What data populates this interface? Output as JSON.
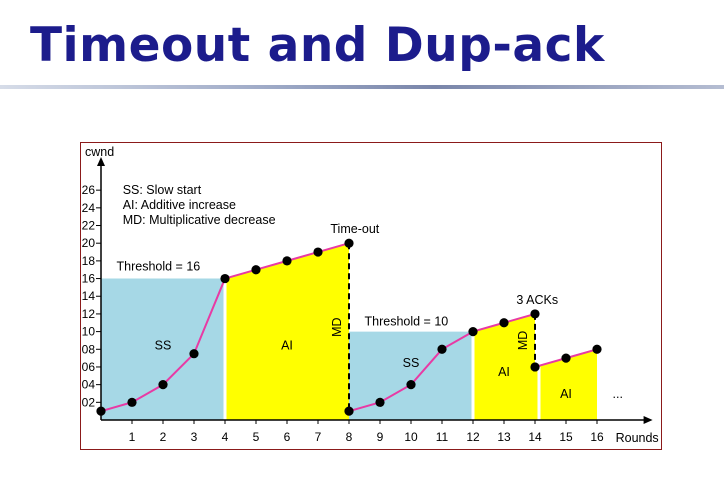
{
  "slide": {
    "title": "Timeout and Dup-ack"
  },
  "colors": {
    "title": "#1c1c8c",
    "ss_fill": "#a6d8e6",
    "ai_fill": "#ffff00",
    "curve": "#e83aa4",
    "frame": "#8b1a1a"
  },
  "chart_data": {
    "type": "line",
    "ylabel": "cwnd",
    "xlabel": "Rounds",
    "x_ticks": [
      "1",
      "2",
      "3",
      "4",
      "5",
      "6",
      "7",
      "8",
      "9",
      "10",
      "11",
      "12",
      "13",
      "14",
      "15",
      "16"
    ],
    "y_ticks": [
      "02",
      "04",
      "06",
      "08",
      "10",
      "12",
      "14",
      "16",
      "18",
      "20",
      "22",
      "24",
      "26"
    ],
    "xlim": [
      0,
      16
    ],
    "ylim": [
      0,
      26
    ],
    "legend": [
      "SS: Slow start",
      "AI: Additive increase",
      "MD: Multiplicative decrease"
    ],
    "series": [
      {
        "x": [
          0,
          1,
          2,
          3,
          4
        ],
        "y": [
          1,
          2,
          4,
          7.5,
          16
        ]
      },
      {
        "x": [
          4,
          5,
          6,
          7,
          8
        ],
        "y": [
          16,
          17,
          18,
          19,
          20
        ]
      },
      {
        "x": [
          8,
          9,
          10,
          11,
          12
        ],
        "y": [
          1,
          2,
          4,
          8,
          10
        ]
      },
      {
        "x": [
          12,
          13,
          14
        ],
        "y": [
          10,
          11,
          12
        ]
      },
      {
        "x": [
          14,
          15,
          16
        ],
        "y": [
          6,
          7,
          8
        ]
      }
    ],
    "regions": [
      {
        "type": "SS",
        "label": "SS"
      },
      {
        "type": "AI",
        "label": "AI"
      },
      {
        "type": "SS",
        "label": "SS"
      },
      {
        "type": "AI",
        "label": "AI"
      },
      {
        "type": "AI",
        "label": "AI"
      }
    ],
    "drops": [
      {
        "label": "MD"
      },
      {
        "label": "MD"
      }
    ],
    "annotations": {
      "threshold1": "Threshold = 16",
      "threshold2": "Threshold = 10",
      "timeout": "Time-out",
      "acks": "3 ACKs",
      "ellipsis": "..."
    }
  }
}
